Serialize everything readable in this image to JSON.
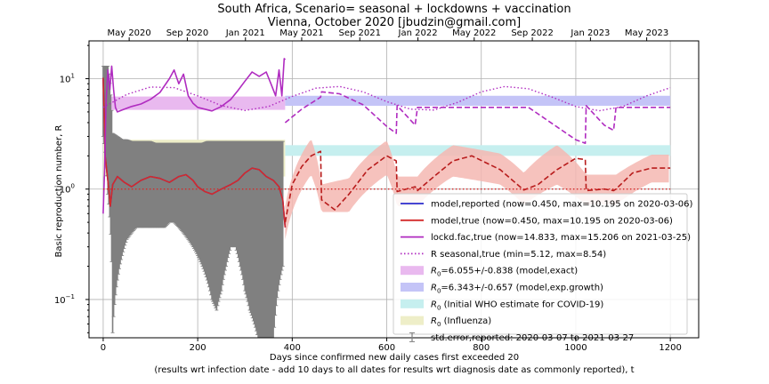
{
  "chart_data": {
    "type": "line",
    "title_line1": "South Africa, Scenario= seasonal + lockdowns + vaccination",
    "title_line2": "Vienna, October 2020 [jbudzin@gmail.com]",
    "xlabel_line1": "Days since confirmed new daily cases first exceeded 20",
    "xlabel_line2": "(results wrt infection date - add 10 days to all dates for results wrt diagnosis date as commonly reported), t",
    "ylabel": "Basic reproduction number, R",
    "xlim": [
      -30,
      1260
    ],
    "ylim": [
      0.045,
      22
    ],
    "yscale": "log",
    "grid": true,
    "legend_placement": "lower-right",
    "x_ticks": [
      0,
      200,
      400,
      600,
      800,
      1000,
      1200
    ],
    "y_ticks": [
      {
        "value": 0.1,
        "base": "10",
        "exp": "−1"
      },
      {
        "value": 1,
        "base": "10",
        "exp": "0"
      },
      {
        "value": 10,
        "base": "10",
        "exp": "1"
      }
    ],
    "top_ticks": [
      {
        "label": "May 2020",
        "day": 55
      },
      {
        "label": "Sep 2020",
        "day": 178
      },
      {
        "label": "Jan 2021",
        "day": 301
      },
      {
        "label": "May 2021",
        "day": 420
      },
      {
        "label": "Sep 2021",
        "day": 543
      },
      {
        "label": "Jan 2022",
        "day": 666
      },
      {
        "label": "May 2022",
        "day": 785
      },
      {
        "label": "Sep 2022",
        "day": 908
      },
      {
        "label": "Jan 2023",
        "day": 1031
      },
      {
        "label": "May 2023",
        "day": 1150
      }
    ],
    "bands": [
      {
        "name": "R0=6.055+/-0.838 (model,exact)",
        "legend_main": "R",
        "legend_sub": "0",
        "legend_rest": "=6.055+/-0.838 (model,exact)",
        "x0": 0,
        "x1": 385,
        "y0": 5.217,
        "y1": 6.893,
        "color": "#e9b9ef"
      },
      {
        "name": "R0=6.343+/-0.657 (model,exp.growth)",
        "legend_main": "R",
        "legend_sub": "0",
        "legend_rest": "=6.343+/-0.657 (model,exp.growth)",
        "x0": 385,
        "x1": 1200,
        "y0": 5.686,
        "y1": 7.0,
        "color": "#c4c4f7"
      },
      {
        "name": "R0 (Initial WHO estimate for COVID-19)",
        "legend_main": "R",
        "legend_sub": "0",
        "legend_rest": " (Initial WHO estimate for COVID-19)",
        "x0": 385,
        "x1": 1200,
        "y0": 2.0,
        "y1": 2.5,
        "color": "#c6efef"
      },
      {
        "name": "R0 (Influenza)",
        "legend_main": "R",
        "legend_sub": "0",
        "legend_rest": " (Influenza)",
        "x0": 0,
        "x1": 385,
        "y0": 1.3,
        "y1": 2.8,
        "color": "#eeeec8"
      }
    ],
    "series": [
      {
        "name": "model,reported (now=0.450, max=10.195 on 2020-03-06)",
        "color": "#2c2ccc",
        "style": "solid",
        "x": [
          0,
          2,
          4,
          8,
          12,
          15,
          20,
          30,
          45,
          60,
          80,
          100,
          120,
          140,
          160,
          175,
          190,
          200,
          215,
          230,
          250,
          270,
          285,
          300,
          315,
          330,
          345,
          360,
          372,
          380,
          385
        ],
        "y": [
          10.195,
          5.0,
          2.0,
          1.4,
          1.0,
          0.7,
          1.1,
          1.3,
          1.15,
          1.05,
          1.2,
          1.3,
          1.25,
          1.15,
          1.3,
          1.35,
          1.2,
          1.05,
          0.95,
          0.9,
          1.0,
          1.1,
          1.2,
          1.4,
          1.55,
          1.5,
          1.3,
          1.2,
          1.05,
          0.8,
          0.45
        ]
      },
      {
        "name": "model,true (now=0.450, max=10.195 on 2020-03-06)",
        "color": "#d42a2a",
        "style": "solid",
        "x": [
          0,
          2,
          4,
          8,
          12,
          15,
          20,
          30,
          45,
          60,
          80,
          100,
          120,
          140,
          160,
          175,
          190,
          200,
          215,
          230,
          250,
          270,
          285,
          300,
          315,
          330,
          345,
          360,
          372,
          380,
          385
        ],
        "y": [
          10.195,
          5.0,
          2.0,
          1.4,
          1.0,
          0.7,
          1.1,
          1.3,
          1.15,
          1.05,
          1.2,
          1.3,
          1.25,
          1.15,
          1.3,
          1.35,
          1.2,
          1.05,
          0.95,
          0.9,
          1.0,
          1.1,
          1.2,
          1.4,
          1.55,
          1.5,
          1.3,
          1.2,
          1.05,
          0.8,
          0.45
        ]
      },
      {
        "name": "lockd.fac,true (now=14.833, max=15.206 on 2021-03-25)",
        "color": "#b02cc0",
        "style": "solid",
        "x": [
          0,
          3,
          6,
          10,
          14,
          18,
          22,
          26,
          30,
          40,
          50,
          60,
          80,
          100,
          120,
          140,
          150,
          160,
          170,
          180,
          190,
          200,
          215,
          230,
          250,
          270,
          285,
          300,
          315,
          330,
          345,
          355,
          365,
          372,
          378,
          383,
          385
        ],
        "y": [
          0.6,
          1.5,
          6.0,
          12.0,
          8.0,
          13.0,
          8.0,
          5.5,
          5.0,
          5.2,
          5.4,
          5.6,
          5.9,
          6.5,
          7.5,
          10.0,
          12.0,
          9.0,
          11.0,
          7.0,
          6.0,
          5.5,
          5.3,
          5.1,
          5.6,
          6.5,
          7.8,
          9.5,
          11.5,
          10.5,
          11.5,
          9.0,
          7.0,
          12.0,
          7.0,
          15.206,
          14.833
        ]
      },
      {
        "name": "R seasonal,true (min=5.12, max=8.54)",
        "color": "#b02cc0",
        "style": "dotted",
        "x": [
          0,
          50,
          100,
          150,
          200,
          250,
          300,
          350,
          400,
          450,
          500,
          550,
          600,
          650,
          700,
          750,
          800,
          850,
          900,
          950,
          1000,
          1050,
          1100,
          1150,
          1200
        ],
        "y": [
          5.5,
          7.2,
          8.4,
          8.3,
          7.0,
          5.7,
          5.15,
          5.6,
          6.9,
          8.2,
          8.5,
          7.6,
          6.2,
          5.3,
          5.2,
          6.1,
          7.6,
          8.5,
          8.1,
          6.8,
          5.6,
          5.12,
          5.6,
          7.0,
          8.3
        ]
      },
      {
        "name": "model,true projection",
        "color": "#b81c1c",
        "style": "dashed",
        "legend": false,
        "x": [
          385,
          400,
          420,
          440,
          460,
          462,
          490,
          520,
          560,
          600,
          620,
          622,
          660,
          665,
          700,
          740,
          780,
          840,
          890,
          920,
          960,
          1000,
          1020,
          1022,
          1060,
          1080,
          1085,
          1120,
          1160,
          1200
        ],
        "y": [
          0.5,
          1.1,
          1.6,
          2.0,
          2.2,
          0.8,
          0.65,
          0.9,
          1.5,
          2.0,
          1.8,
          0.95,
          1.05,
          0.97,
          1.3,
          1.8,
          2.0,
          1.5,
          0.98,
          1.1,
          1.5,
          1.9,
          1.85,
          0.97,
          1.0,
          0.97,
          1.0,
          1.4,
          1.55,
          1.55
        ]
      },
      {
        "name": "lockd.fac projection",
        "color": "#b02cc0",
        "style": "dashed",
        "legend": false,
        "x": [
          385,
          420,
          460,
          462,
          500,
          550,
          600,
          620,
          622,
          660,
          665,
          700,
          800,
          900,
          1000,
          1020,
          1022,
          1060,
          1080,
          1085,
          1200
        ],
        "y": [
          4.0,
          5.3,
          6.8,
          7.6,
          7.3,
          5.8,
          3.7,
          3.2,
          5.7,
          3.8,
          5.5,
          5.5,
          5.5,
          5.5,
          2.8,
          2.6,
          5.7,
          3.8,
          3.4,
          5.5,
          5.5
        ]
      },
      {
        "name": "R=1 reference",
        "color": "#d42a2a",
        "style": "dotted",
        "legend": false,
        "x": [
          0,
          1200
        ],
        "y": [
          1.0,
          1.0
        ]
      }
    ],
    "error_bars": {
      "name": "std.error,reported: 2020-03-07 to 2021-03-27",
      "color": "#808080",
      "x": [
        0,
        10,
        20,
        30,
        40,
        50,
        60,
        70,
        80,
        90,
        100,
        110,
        120,
        130,
        140,
        150,
        160,
        170,
        180,
        190,
        200,
        210,
        220,
        230,
        240,
        250,
        260,
        270,
        280,
        290,
        300,
        310,
        320,
        330,
        340,
        350,
        360,
        370,
        380
      ],
      "low": [
        3,
        0.9,
        0.05,
        0.15,
        0.25,
        0.35,
        0.4,
        0.45,
        0.45,
        0.45,
        0.45,
        0.45,
        0.45,
        0.45,
        0.5,
        0.5,
        0.45,
        0.4,
        0.35,
        0.3,
        0.25,
        0.2,
        0.15,
        0.1,
        0.08,
        0.12,
        0.2,
        0.3,
        0.3,
        0.2,
        0.12,
        0.08,
        0.06,
        0.04,
        0.04,
        0.04,
        0.04,
        0.12,
        0.2
      ],
      "high": [
        13,
        13,
        3.2,
        3.0,
        2.8,
        2.8,
        2.7,
        2.7,
        2.7,
        2.7,
        2.7,
        2.6,
        2.6,
        2.6,
        2.6,
        2.6,
        2.6,
        2.6,
        2.6,
        2.6,
        2.6,
        2.6,
        2.7,
        2.7,
        2.7,
        2.7,
        2.7,
        2.7,
        2.7,
        2.7,
        2.7,
        2.7,
        2.7,
        2.7,
        2.7,
        2.7,
        2.7,
        2.7,
        2.7
      ]
    },
    "projection_band": {
      "color": "#f5b7b1",
      "x": [
        385,
        440,
        462,
        520,
        600,
        622,
        665,
        740,
        840,
        890,
        960,
        1022,
        1085,
        1160,
        1200
      ],
      "low": [
        0.35,
        1.35,
        0.62,
        0.62,
        1.35,
        0.7,
        0.7,
        1.3,
        1.1,
        0.72,
        1.1,
        0.72,
        0.72,
        1.15,
        1.15
      ],
      "high": [
        0.7,
        2.85,
        1.1,
        1.25,
        2.75,
        1.3,
        1.3,
        2.5,
        2.1,
        1.4,
        2.5,
        1.35,
        1.35,
        2.05,
        2.05
      ]
    }
  }
}
